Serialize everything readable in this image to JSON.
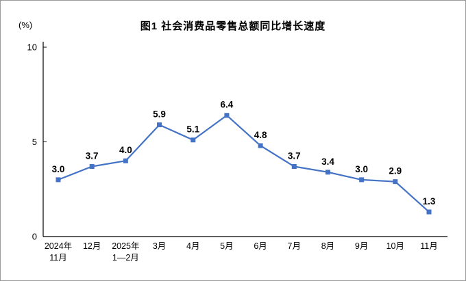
{
  "chart_data": {
    "type": "line",
    "title": "图1  社会消费品零售总额同比增长速度",
    "unit_label": "(%)",
    "categories": [
      [
        "2024年",
        "11月"
      ],
      [
        "12月"
      ],
      [
        "2025年",
        "1—2月"
      ],
      [
        "3月"
      ],
      [
        "4月"
      ],
      [
        "5月"
      ],
      [
        "6月"
      ],
      [
        "7月"
      ],
      [
        "8月"
      ],
      [
        "9月"
      ],
      [
        "10月"
      ],
      [
        "11月"
      ]
    ],
    "values": [
      3.0,
      3.7,
      4.0,
      5.9,
      5.1,
      6.4,
      4.8,
      3.7,
      3.4,
      3.0,
      2.9,
      1.3
    ],
    "y_ticks": [
      0,
      5,
      10
    ],
    "ylim": [
      0,
      10
    ],
    "line_color": "#4472C4",
    "axis_color": "#000000",
    "marker": "square",
    "grid": false,
    "legend": "none"
  }
}
